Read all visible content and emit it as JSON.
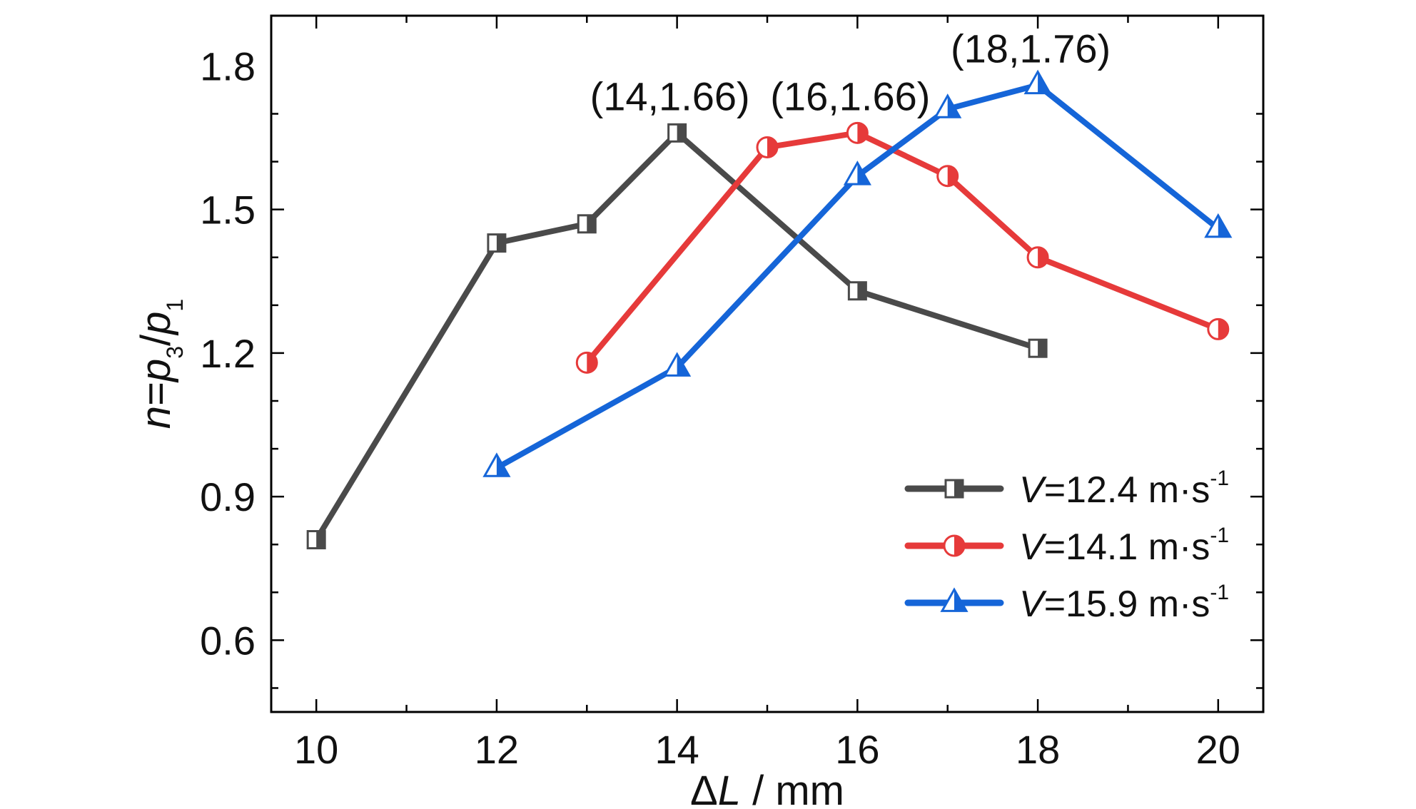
{
  "chart_data": {
    "type": "line",
    "xlabel": "ΔL / mm",
    "ylabel": "n=p3/p1",
    "xlim": [
      9.5,
      20.5
    ],
    "ylim": [
      0.45,
      1.905
    ],
    "xticks": [
      10,
      12,
      14,
      16,
      18,
      20
    ],
    "xtick_labels": [
      "10",
      "12",
      "14",
      "16",
      "18",
      "20"
    ],
    "yticks": [
      0.6,
      0.9,
      1.2,
      1.5,
      1.8
    ],
    "ytick_labels": [
      "0.6",
      "0.9",
      "1.2",
      "1.5",
      "1.8"
    ],
    "grid": false,
    "legend_position": "bottom-right",
    "series": [
      {
        "name": "V=12.4 m·s-1",
        "name_parts": {
          "var": "V",
          "value": "=12.4 m·s",
          "exp": "-1"
        },
        "color": "#4a4a4a",
        "marker": "square",
        "x": [
          10,
          12,
          13,
          14,
          16,
          18
        ],
        "y": [
          0.81,
          1.43,
          1.47,
          1.66,
          1.33,
          1.21
        ]
      },
      {
        "name": "V=14.1 m·s-1",
        "name_parts": {
          "var": "V",
          "value": "=14.1 m·s",
          "exp": "-1"
        },
        "color": "#e63a3a",
        "marker": "circle",
        "x": [
          13,
          15,
          16,
          17,
          18,
          20
        ],
        "y": [
          1.18,
          1.63,
          1.66,
          1.57,
          1.4,
          1.25
        ]
      },
      {
        "name": "V=15.9 m·s-1",
        "name_parts": {
          "var": "V",
          "value": "=15.9 m·s",
          "exp": "-1"
        },
        "color": "#1565d8",
        "marker": "triangle",
        "x": [
          12,
          14,
          16,
          17,
          18,
          20
        ],
        "y": [
          0.96,
          1.17,
          1.57,
          1.71,
          1.76,
          1.46
        ]
      }
    ],
    "annotations": [
      {
        "text": "(14,1.66)",
        "x": 14,
        "y": 1.66
      },
      {
        "text": "(16,1.66)",
        "x": 16,
        "y": 1.66
      },
      {
        "text": "(18,1.76)",
        "x": 18,
        "y": 1.76
      }
    ]
  }
}
